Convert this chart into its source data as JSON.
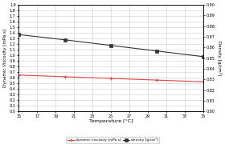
{
  "temperatures": [
    15,
    20,
    25,
    30,
    35
  ],
  "viscosity": [
    0.65,
    0.62,
    0.59,
    0.56,
    0.53
  ],
  "density": [
    0.8722,
    0.8673,
    0.862,
    0.8568,
    0.8515
  ],
  "viscosity_color": "#dd4444",
  "density_color": "#333333",
  "xlabel": "Temperature [°C]",
  "ylabel_left": "Dynamic Viscosity [mPa.s]",
  "ylabel_right": "Density [g/cm³]",
  "ylim_left": [
    0.0,
    1.9
  ],
  "ylim_right": [
    0.8,
    0.9
  ],
  "xlim": [
    15,
    35
  ],
  "xticks": [
    15,
    17,
    19,
    21,
    23,
    25,
    27,
    29,
    31,
    33,
    35
  ],
  "xticklabels": [
    "15",
    "17",
    "19",
    "21",
    "23",
    "25",
    "27",
    "29",
    "31",
    "33",
    "35"
  ],
  "yticks_left": [
    0.0,
    0.1,
    0.2,
    0.3,
    0.4,
    0.5,
    0.6,
    0.7,
    0.8,
    0.9,
    1.0,
    1.1,
    1.2,
    1.3,
    1.4,
    1.5,
    1.6,
    1.7,
    1.8,
    1.9
  ],
  "yticks_right": [
    0.8,
    0.81,
    0.82,
    0.83,
    0.84,
    0.85,
    0.86,
    0.87,
    0.88,
    0.89,
    0.9
  ],
  "legend_viscosity": "dynamic viscosity [mPa.s]",
  "legend_density": "density [g/cm³]",
  "background_color": "#ffffff",
  "grid_color": "#cccccc",
  "title": ""
}
